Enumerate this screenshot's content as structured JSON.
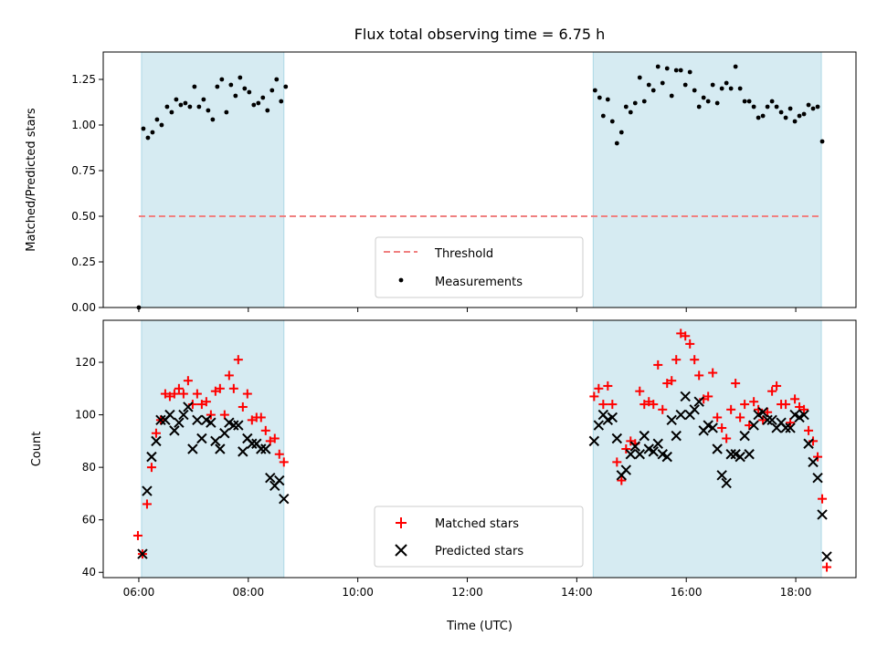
{
  "chart_data": [
    {
      "type": "scatter",
      "title": "Flux total observing time = 6.75 h",
      "xlabel": "",
      "ylabel": "Matched/Predicted stars",
      "ylim": [
        0.0,
        1.4
      ],
      "y_ticks": [
        "0.00",
        "0.25",
        "0.50",
        "0.75",
        "1.00",
        "1.25"
      ],
      "xlim": [
        "05:21",
        "19:06"
      ],
      "shaded_intervals": [
        [
          "06:03",
          "08:39"
        ],
        [
          "14:18",
          "18:28"
        ]
      ],
      "shade_color": "#add8e6",
      "reference_lines": [
        {
          "name": "Threshold",
          "y": 0.5,
          "x_range": [
            "06:00",
            "18:28"
          ],
          "style": "dashed",
          "color": "#f08080"
        }
      ],
      "legend": {
        "placement": "bottom-center",
        "entries": [
          "Threshold",
          "Measurements"
        ]
      },
      "series": [
        {
          "name": "Measurements",
          "marker": "dot",
          "color": "#000000",
          "points": [
            [
              "06:00",
              0.0
            ],
            [
              "06:05",
              0.98
            ],
            [
              "06:10",
              0.93
            ],
            [
              "06:15",
              0.96
            ],
            [
              "06:20",
              1.03
            ],
            [
              "06:25",
              1.0
            ],
            [
              "06:31",
              1.1
            ],
            [
              "06:36",
              1.07
            ],
            [
              "06:41",
              1.14
            ],
            [
              "06:46",
              1.11
            ],
            [
              "06:51",
              1.12
            ],
            [
              "06:56",
              1.1
            ],
            [
              "07:01",
              1.21
            ],
            [
              "07:06",
              1.1
            ],
            [
              "07:11",
              1.14
            ],
            [
              "07:16",
              1.08
            ],
            [
              "07:21",
              1.03
            ],
            [
              "07:26",
              1.21
            ],
            [
              "07:31",
              1.25
            ],
            [
              "07:36",
              1.07
            ],
            [
              "07:41",
              1.22
            ],
            [
              "07:46",
              1.16
            ],
            [
              "07:51",
              1.26
            ],
            [
              "07:56",
              1.2
            ],
            [
              "08:01",
              1.18
            ],
            [
              "08:06",
              1.11
            ],
            [
              "08:11",
              1.12
            ],
            [
              "08:16",
              1.15
            ],
            [
              "08:21",
              1.08
            ],
            [
              "08:26",
              1.19
            ],
            [
              "08:31",
              1.25
            ],
            [
              "08:36",
              1.13
            ],
            [
              "08:41",
              1.21
            ],
            [
              "14:20",
              1.19
            ],
            [
              "14:25",
              1.15
            ],
            [
              "14:29",
              1.05
            ],
            [
              "14:34",
              1.14
            ],
            [
              "14:39",
              1.02
            ],
            [
              "14:44",
              0.9
            ],
            [
              "14:49",
              0.96
            ],
            [
              "14:54",
              1.1
            ],
            [
              "14:59",
              1.07
            ],
            [
              "15:04",
              1.12
            ],
            [
              "15:09",
              1.26
            ],
            [
              "15:14",
              1.13
            ],
            [
              "15:19",
              1.22
            ],
            [
              "15:24",
              1.19
            ],
            [
              "15:29",
              1.32
            ],
            [
              "15:34",
              1.23
            ],
            [
              "15:39",
              1.31
            ],
            [
              "15:44",
              1.16
            ],
            [
              "15:49",
              1.3
            ],
            [
              "15:54",
              1.3
            ],
            [
              "15:59",
              1.22
            ],
            [
              "16:04",
              1.29
            ],
            [
              "16:09",
              1.19
            ],
            [
              "16:14",
              1.1
            ],
            [
              "16:19",
              1.15
            ],
            [
              "16:24",
              1.13
            ],
            [
              "16:29",
              1.22
            ],
            [
              "16:34",
              1.12
            ],
            [
              "16:39",
              1.2
            ],
            [
              "16:44",
              1.23
            ],
            [
              "16:49",
              1.2
            ],
            [
              "16:54",
              1.32
            ],
            [
              "16:59",
              1.2
            ],
            [
              "17:04",
              1.13
            ],
            [
              "17:09",
              1.13
            ],
            [
              "17:14",
              1.1
            ],
            [
              "17:19",
              1.04
            ],
            [
              "17:24",
              1.05
            ],
            [
              "17:29",
              1.1
            ],
            [
              "17:34",
              1.13
            ],
            [
              "17:39",
              1.1
            ],
            [
              "17:44",
              1.07
            ],
            [
              "17:49",
              1.04
            ],
            [
              "17:54",
              1.09
            ],
            [
              "17:59",
              1.02
            ],
            [
              "18:04",
              1.05
            ],
            [
              "18:09",
              1.06
            ],
            [
              "18:14",
              1.11
            ],
            [
              "18:19",
              1.09
            ],
            [
              "18:24",
              1.1
            ],
            [
              "18:29",
              0.91
            ]
          ]
        }
      ]
    },
    {
      "type": "scatter",
      "title": "",
      "xlabel": "Time (UTC)",
      "ylabel": "Count",
      "ylim": [
        38,
        136
      ],
      "y_ticks": [
        "40",
        "60",
        "80",
        "100",
        "120"
      ],
      "xlim": [
        "05:21",
        "19:06"
      ],
      "x_ticks": [
        "06:00",
        "08:00",
        "10:00",
        "12:00",
        "14:00",
        "16:00",
        "18:00"
      ],
      "shaded_intervals": [
        [
          "06:03",
          "08:39"
        ],
        [
          "14:18",
          "18:28"
        ]
      ],
      "shade_color": "#add8e6",
      "legend": {
        "placement": "bottom-center",
        "entries": [
          "Matched stars",
          "Predicted stars"
        ]
      },
      "series": [
        {
          "name": "Matched stars",
          "marker": "plus",
          "color": "#ff0000",
          "points": [
            [
              "05:59",
              54
            ],
            [
              "06:04",
              47
            ],
            [
              "06:09",
              66
            ],
            [
              "06:14",
              80
            ],
            [
              "06:19",
              93
            ],
            [
              "06:24",
              98
            ],
            [
              "06:29",
              108
            ],
            [
              "06:34",
              107
            ],
            [
              "06:39",
              108
            ],
            [
              "06:44",
              110
            ],
            [
              "06:49",
              108
            ],
            [
              "06:54",
              113
            ],
            [
              "06:59",
              104
            ],
            [
              "07:04",
              108
            ],
            [
              "07:09",
              104
            ],
            [
              "07:14",
              105
            ],
            [
              "07:19",
              100
            ],
            [
              "07:24",
              109
            ],
            [
              "07:29",
              110
            ],
            [
              "07:34",
              100
            ],
            [
              "07:39",
              115
            ],
            [
              "07:44",
              110
            ],
            [
              "07:49",
              121
            ],
            [
              "07:54",
              103
            ],
            [
              "07:59",
              108
            ],
            [
              "08:04",
              98
            ],
            [
              "08:09",
              99
            ],
            [
              "08:14",
              99
            ],
            [
              "08:19",
              94
            ],
            [
              "08:24",
              90
            ],
            [
              "08:29",
              91
            ],
            [
              "08:34",
              85
            ],
            [
              "08:39",
              82
            ],
            [
              "14:19",
              107
            ],
            [
              "14:24",
              110
            ],
            [
              "14:29",
              104
            ],
            [
              "14:34",
              111
            ],
            [
              "14:39",
              104
            ],
            [
              "14:44",
              82
            ],
            [
              "14:49",
              75
            ],
            [
              "14:54",
              87
            ],
            [
              "14:59",
              90
            ],
            [
              "15:04",
              89
            ],
            [
              "15:09",
              109
            ],
            [
              "15:14",
              104
            ],
            [
              "15:19",
              105
            ],
            [
              "15:24",
              104
            ],
            [
              "15:29",
              119
            ],
            [
              "15:34",
              102
            ],
            [
              "15:39",
              112
            ],
            [
              "15:44",
              113
            ],
            [
              "15:49",
              121
            ],
            [
              "15:54",
              131
            ],
            [
              "15:59",
              130
            ],
            [
              "16:04",
              127
            ],
            [
              "16:09",
              121
            ],
            [
              "16:14",
              115
            ],
            [
              "16:19",
              106
            ],
            [
              "16:24",
              107
            ],
            [
              "16:29",
              116
            ],
            [
              "16:34",
              99
            ],
            [
              "16:39",
              95
            ],
            [
              "16:44",
              91
            ],
            [
              "16:49",
              102
            ],
            [
              "16:54",
              112
            ],
            [
              "16:59",
              99
            ],
            [
              "17:04",
              104
            ],
            [
              "17:09",
              96
            ],
            [
              "17:14",
              105
            ],
            [
              "17:19",
              102
            ],
            [
              "17:24",
              98
            ],
            [
              "17:29",
              101
            ],
            [
              "17:34",
              109
            ],
            [
              "17:39",
              111
            ],
            [
              "17:44",
              104
            ],
            [
              "17:49",
              104
            ],
            [
              "17:54",
              97
            ],
            [
              "17:59",
              106
            ],
            [
              "18:04",
              103
            ],
            [
              "18:09",
              102
            ],
            [
              "18:14",
              94
            ],
            [
              "18:19",
              90
            ],
            [
              "18:24",
              84
            ],
            [
              "18:29",
              68
            ],
            [
              "18:34",
              42
            ]
          ]
        },
        {
          "name": "Predicted stars",
          "marker": "x",
          "color": "#000000",
          "points": [
            [
              "06:04",
              47
            ],
            [
              "06:09",
              71
            ],
            [
              "06:14",
              84
            ],
            [
              "06:19",
              90
            ],
            [
              "06:24",
              98
            ],
            [
              "06:29",
              98
            ],
            [
              "06:34",
              100
            ],
            [
              "06:39",
              94
            ],
            [
              "06:44",
              97
            ],
            [
              "06:49",
              100
            ],
            [
              "06:54",
              103
            ],
            [
              "06:59",
              87
            ],
            [
              "07:04",
              98
            ],
            [
              "07:09",
              91
            ],
            [
              "07:14",
              98
            ],
            [
              "07:19",
              97
            ],
            [
              "07:24",
              90
            ],
            [
              "07:29",
              87
            ],
            [
              "07:34",
              93
            ],
            [
              "07:39",
              97
            ],
            [
              "07:44",
              96
            ],
            [
              "07:49",
              96
            ],
            [
              "07:54",
              86
            ],
            [
              "07:59",
              91
            ],
            [
              "08:04",
              89
            ],
            [
              "08:09",
              89
            ],
            [
              "08:14",
              87
            ],
            [
              "08:19",
              87
            ],
            [
              "08:24",
              76
            ],
            [
              "08:29",
              73
            ],
            [
              "08:34",
              75
            ],
            [
              "08:39",
              68
            ],
            [
              "14:19",
              90
            ],
            [
              "14:24",
              96
            ],
            [
              "14:29",
              100
            ],
            [
              "14:34",
              98
            ],
            [
              "14:39",
              99
            ],
            [
              "14:44",
              91
            ],
            [
              "14:49",
              77
            ],
            [
              "14:54",
              79
            ],
            [
              "14:59",
              85
            ],
            [
              "15:04",
              88
            ],
            [
              "15:09",
              85
            ],
            [
              "15:14",
              92
            ],
            [
              "15:19",
              87
            ],
            [
              "15:24",
              86
            ],
            [
              "15:29",
              89
            ],
            [
              "15:34",
              85
            ],
            [
              "15:39",
              84
            ],
            [
              "15:44",
              98
            ],
            [
              "15:49",
              92
            ],
            [
              "15:54",
              100
            ],
            [
              "15:59",
              107
            ],
            [
              "16:04",
              100
            ],
            [
              "16:09",
              102
            ],
            [
              "16:14",
              105
            ],
            [
              "16:19",
              94
            ],
            [
              "16:24",
              96
            ],
            [
              "16:29",
              95
            ],
            [
              "16:34",
              87
            ],
            [
              "16:39",
              77
            ],
            [
              "16:44",
              74
            ],
            [
              "16:49",
              85
            ],
            [
              "16:54",
              85
            ],
            [
              "16:59",
              84
            ],
            [
              "17:04",
              92
            ],
            [
              "17:09",
              85
            ],
            [
              "17:14",
              96
            ],
            [
              "17:19",
              100
            ],
            [
              "17:24",
              101
            ],
            [
              "17:29",
              98
            ],
            [
              "17:34",
              98
            ],
            [
              "17:39",
              95
            ],
            [
              "17:44",
              97
            ],
            [
              "17:49",
              95
            ],
            [
              "17:54",
              95
            ],
            [
              "17:59",
              100
            ],
            [
              "18:04",
              99
            ],
            [
              "18:09",
              100
            ],
            [
              "18:14",
              89
            ],
            [
              "18:19",
              82
            ],
            [
              "18:24",
              76
            ],
            [
              "18:29",
              62
            ],
            [
              "18:34",
              46
            ]
          ]
        }
      ]
    }
  ]
}
